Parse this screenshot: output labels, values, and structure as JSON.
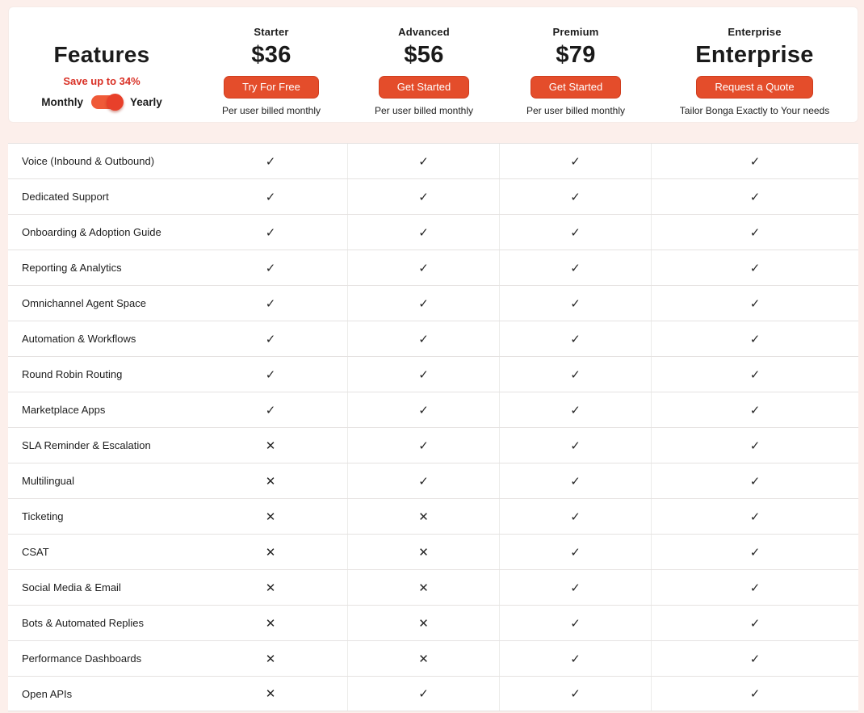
{
  "page": {
    "background": "#fcefeb",
    "accent": "#e44d2b"
  },
  "header": {
    "features_title": "Features",
    "save_note": "Save up to 34%",
    "billing_toggle": {
      "left_label": "Monthly",
      "right_label": "Yearly",
      "selected": "Yearly"
    },
    "plans": [
      {
        "name": "Starter",
        "price": "$36",
        "cta": "Try For Free",
        "note": "Per user billed monthly"
      },
      {
        "name": "Advanced",
        "price": "$56",
        "cta": "Get Started",
        "note": "Per user billed monthly"
      },
      {
        "name": "Premium",
        "price": "$79",
        "cta": "Get Started",
        "note": "Per user billed monthly"
      },
      {
        "name": "Enterprise",
        "price": "Enterprise",
        "cta": "Request a Quote",
        "note": "Tailor Bonga Exactly to Your needs"
      }
    ]
  },
  "table": {
    "check_glyph": "✓",
    "cross_glyph": "✕",
    "columns": [
      "Starter",
      "Advanced",
      "Premium",
      "Enterprise"
    ],
    "rows": [
      {
        "feature": "Voice (Inbound & Outbound)",
        "starter": true,
        "advanced": true,
        "premium": true,
        "enterprise": true
      },
      {
        "feature": "Dedicated Support",
        "starter": true,
        "advanced": true,
        "premium": true,
        "enterprise": true
      },
      {
        "feature": "Onboarding & Adoption Guide",
        "starter": true,
        "advanced": true,
        "premium": true,
        "enterprise": true
      },
      {
        "feature": "Reporting & Analytics",
        "starter": true,
        "advanced": true,
        "premium": true,
        "enterprise": true
      },
      {
        "feature": "Omnichannel Agent Space",
        "starter": true,
        "advanced": true,
        "premium": true,
        "enterprise": true
      },
      {
        "feature": "Automation & Workflows",
        "starter": true,
        "advanced": true,
        "premium": true,
        "enterprise": true
      },
      {
        "feature": "Round Robin Routing",
        "starter": true,
        "advanced": true,
        "premium": true,
        "enterprise": true
      },
      {
        "feature": "Marketplace Apps",
        "starter": true,
        "advanced": true,
        "premium": true,
        "enterprise": true
      },
      {
        "feature": "SLA Reminder & Escalation",
        "starter": false,
        "advanced": true,
        "premium": true,
        "enterprise": true
      },
      {
        "feature": "Multilingual",
        "starter": false,
        "advanced": true,
        "premium": true,
        "enterprise": true
      },
      {
        "feature": "Ticketing",
        "starter": false,
        "advanced": false,
        "premium": true,
        "enterprise": true
      },
      {
        "feature": "CSAT",
        "starter": false,
        "advanced": false,
        "premium": true,
        "enterprise": true
      },
      {
        "feature": "Social Media & Email",
        "starter": false,
        "advanced": false,
        "premium": true,
        "enterprise": true
      },
      {
        "feature": "Bots & Automated Replies",
        "starter": false,
        "advanced": false,
        "premium": true,
        "enterprise": true
      },
      {
        "feature": "Performance Dashboards",
        "starter": false,
        "advanced": false,
        "premium": true,
        "enterprise": true
      },
      {
        "feature": "Open APIs",
        "starter": false,
        "advanced": true,
        "premium": true,
        "enterprise": true
      }
    ]
  }
}
